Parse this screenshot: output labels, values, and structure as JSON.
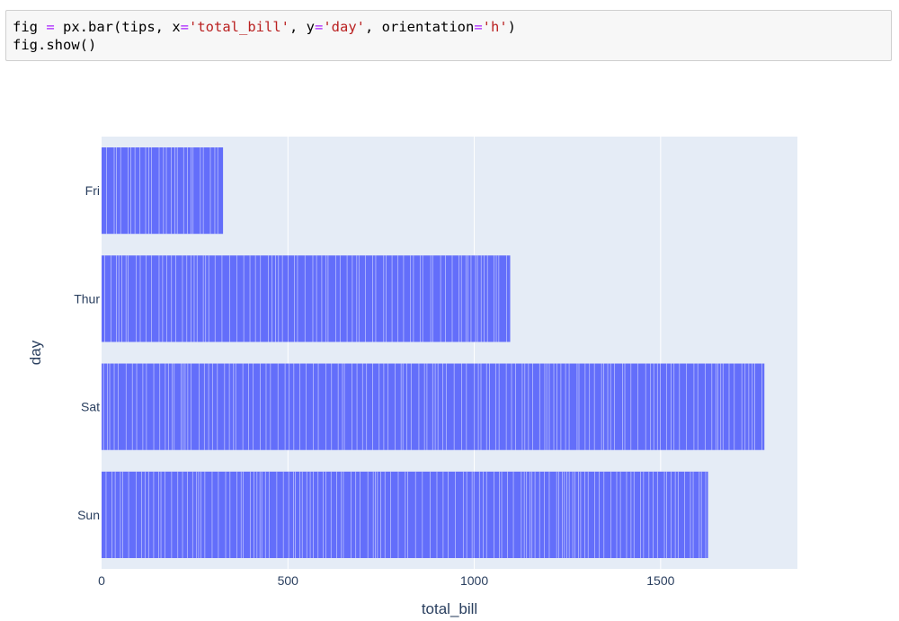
{
  "code": {
    "line1": [
      {
        "text": "fig ",
        "style": "plain"
      },
      {
        "text": "=",
        "style": "op"
      },
      {
        "text": " px.bar(tips, x",
        "style": "plain"
      },
      {
        "text": "=",
        "style": "op"
      },
      {
        "text": "'total_bill'",
        "style": "str"
      },
      {
        "text": ", y",
        "style": "plain"
      },
      {
        "text": "=",
        "style": "op"
      },
      {
        "text": "'day'",
        "style": "str"
      },
      {
        "text": ", orientation",
        "style": "plain"
      },
      {
        "text": "=",
        "style": "op"
      },
      {
        "text": "'h'",
        "style": "str"
      },
      {
        "text": ")",
        "style": "plain"
      }
    ],
    "line2": "fig.show()"
  },
  "chart_data": {
    "type": "bar",
    "orientation": "h",
    "categories": [
      "Fri",
      "Thur",
      "Sat",
      "Sun"
    ],
    "values": [
      325.88,
      1096.33,
      1778.4,
      1627.16
    ],
    "xlabel": "total_bill",
    "ylabel": "day",
    "xlim": [
      0,
      1867
    ],
    "xticks": [
      0,
      500,
      1000,
      1500
    ],
    "tick_labels": [
      "0",
      "500",
      "1000",
      "1500"
    ],
    "grid": true,
    "colors": {
      "bar": "#636efa",
      "plot_background": "#e5ecf6",
      "grid": "#ffffff",
      "text": "#2a3f5f"
    },
    "segment_seed": 17
  }
}
